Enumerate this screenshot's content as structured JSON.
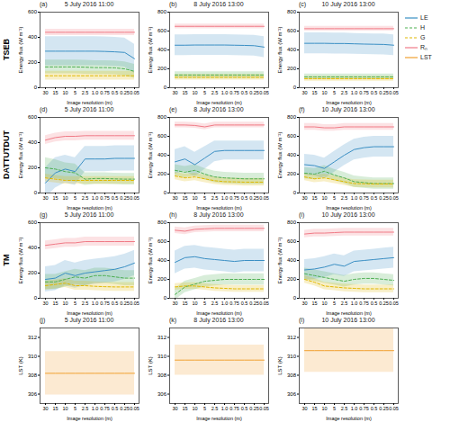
{
  "chart_data": [
    {
      "type": "line",
      "panel_label": "(a)",
      "title": "5 July 2016 11:00",
      "row_label": "TSEB",
      "xlabel": "Image resolution (m)",
      "ylabel": "Energy flux (W m⁻²)",
      "categories": [
        "30",
        "15",
        "10",
        "5",
        "2.5",
        "1.0",
        "0.75",
        "0.5",
        "0.25",
        "0.05"
      ],
      "ylim": [
        0,
        600
      ],
      "yticks": [
        0,
        200,
        400,
        600
      ],
      "series": [
        {
          "name": "LE",
          "color": "#3a8fc4",
          "line_style": "solid",
          "values": [
            290,
            290,
            290,
            290,
            290,
            290,
            288,
            285,
            280,
            230
          ],
          "error": 115
        },
        {
          "name": "H",
          "color": "#4caf50",
          "line_style": "dashed",
          "values": [
            165,
            165,
            165,
            165,
            163,
            160,
            160,
            158,
            150,
            130
          ],
          "error": 55
        },
        {
          "name": "G",
          "color": "#e0b800",
          "line_style": "dashed",
          "values": [
            95,
            95,
            95,
            95,
            95,
            95,
            95,
            95,
            95,
            95
          ],
          "error": 35
        },
        {
          "name": "Rₙ",
          "color": "#f07a86",
          "line_style": "solid",
          "values": [
            440,
            440,
            440,
            440,
            440,
            440,
            440,
            440,
            440,
            440
          ],
          "error": 25
        }
      ]
    },
    {
      "type": "line",
      "panel_label": "(b)",
      "title": "8 July 2016 13:00",
      "xlabel": "Image resolution (m)",
      "ylabel": "Energy flux (W m⁻²)",
      "categories": [
        "30",
        "15",
        "10",
        "5",
        "2.5",
        "1.0",
        "0.75",
        "0.5",
        "0.25",
        "0.05"
      ],
      "ylim": [
        0,
        800
      ],
      "yticks": [
        0,
        200,
        400,
        600,
        800
      ],
      "series": [
        {
          "name": "LE",
          "color": "#3a8fc4",
          "line_style": "solid",
          "values": [
            450,
            450,
            452,
            452,
            452,
            452,
            450,
            448,
            445,
            430
          ],
          "error": 110
        },
        {
          "name": "H",
          "color": "#4caf50",
          "line_style": "dashed",
          "values": [
            135,
            135,
            135,
            135,
            135,
            135,
            135,
            135,
            135,
            135
          ],
          "error": 35
        },
        {
          "name": "G",
          "color": "#e0b800",
          "line_style": "dashed",
          "values": [
            110,
            110,
            110,
            110,
            110,
            110,
            110,
            110,
            110,
            110
          ],
          "error": 30
        },
        {
          "name": "Rₙ",
          "color": "#f07a86",
          "line_style": "solid",
          "values": [
            650,
            650,
            650,
            650,
            650,
            650,
            650,
            650,
            650,
            650
          ],
          "error": 25
        }
      ]
    },
    {
      "type": "line",
      "panel_label": "(c)",
      "title": "10 July 2016 13:00",
      "xlabel": "Image resolution (m)",
      "ylabel": "Energy flux (W m⁻²)",
      "legend": "right",
      "categories": [
        "30",
        "15",
        "10",
        "5",
        "2.5",
        "1.0",
        "0.75",
        "0.5",
        "0.25",
        "0.05"
      ],
      "ylim": [
        0,
        800
      ],
      "yticks": [
        0,
        200,
        400,
        600,
        800
      ],
      "series": [
        {
          "name": "LE",
          "color": "#3a8fc4",
          "line_style": "solid",
          "values": [
            470,
            470,
            470,
            468,
            468,
            465,
            462,
            460,
            458,
            450
          ],
          "error": 110
        },
        {
          "name": "H",
          "color": "#4caf50",
          "line_style": "dashed",
          "values": [
            115,
            115,
            115,
            115,
            115,
            115,
            115,
            115,
            115,
            115
          ],
          "error": 30
        },
        {
          "name": "G",
          "color": "#e0b800",
          "line_style": "dashed",
          "values": [
            95,
            95,
            95,
            95,
            95,
            95,
            95,
            95,
            95,
            95
          ],
          "error": 25
        },
        {
          "name": "Rₙ",
          "color": "#f07a86",
          "line_style": "solid",
          "values": [
            625,
            625,
            625,
            625,
            625,
            625,
            625,
            625,
            625,
            625
          ],
          "error": 25
        }
      ]
    },
    {
      "type": "line",
      "panel_label": "(d)",
      "title": "5 July 2016 11:00",
      "row_label": "DATTUTDUT",
      "xlabel": "Image resolution (m)",
      "ylabel": "Energy flux (W m⁻²)",
      "categories": [
        "30",
        "15",
        "10",
        "5",
        "2.5",
        "1.0",
        "0.75",
        "0.5",
        "0.25",
        "0.05"
      ],
      "ylim": [
        0,
        600
      ],
      "yticks": [
        0,
        200,
        400,
        600
      ],
      "series": [
        {
          "name": "LE",
          "color": "#3a8fc4",
          "line_style": "solid",
          "values": [
            80,
            160,
            190,
            170,
            270,
            270,
            270,
            275,
            275,
            275
          ],
          "error": [
            120,
            120,
            110,
            110,
            100,
            100,
            100,
            100,
            100,
            100
          ]
        },
        {
          "name": "H",
          "color": "#4caf50",
          "line_style": "dashed",
          "values": [
            200,
            190,
            170,
            160,
            110,
            115,
            115,
            112,
            110,
            110
          ],
          "error": [
            80,
            75,
            70,
            70,
            50,
            45,
            45,
            45,
            45,
            45
          ]
        },
        {
          "name": "G",
          "color": "#e0b800",
          "line_style": "dashed",
          "values": [
            120,
            110,
            100,
            100,
            100,
            100,
            100,
            100,
            100,
            100
          ],
          "error": 30
        },
        {
          "name": "Rₙ",
          "color": "#f07a86",
          "line_style": "solid",
          "values": [
            420,
            440,
            450,
            450,
            455,
            455,
            455,
            455,
            455,
            455
          ],
          "error": 35
        }
      ]
    },
    {
      "type": "line",
      "panel_label": "(e)",
      "title": "8 July 2016 13:00",
      "xlabel": "Image resolution (m)",
      "ylabel": "Energy flux (W m⁻²)",
      "categories": [
        "30",
        "15",
        "10",
        "5",
        "2.5",
        "1.0",
        "0.75",
        "0.5",
        "0.25",
        "0.05"
      ],
      "ylim": [
        0,
        800
      ],
      "yticks": [
        0,
        200,
        400,
        600,
        800
      ],
      "series": [
        {
          "name": "LE",
          "color": "#3a8fc4",
          "line_style": "solid",
          "values": [
            330,
            360,
            300,
            370,
            440,
            450,
            450,
            450,
            450,
            450
          ],
          "error": [
            130,
            130,
            130,
            120,
            110,
            100,
            100,
            100,
            100,
            100
          ]
        },
        {
          "name": "H",
          "color": "#4caf50",
          "line_style": "dashed",
          "values": [
            240,
            220,
            240,
            200,
            170,
            160,
            155,
            150,
            150,
            150
          ],
          "error": 60
        },
        {
          "name": "G",
          "color": "#e0b800",
          "line_style": "dashed",
          "values": [
            180,
            160,
            170,
            150,
            130,
            120,
            118,
            115,
            115,
            115
          ],
          "error": 40
        },
        {
          "name": "Rₙ",
          "color": "#f07a86",
          "line_style": "solid",
          "values": [
            720,
            720,
            715,
            700,
            720,
            720,
            720,
            720,
            720,
            720
          ],
          "error": 30
        }
      ]
    },
    {
      "type": "line",
      "panel_label": "(f)",
      "title": "10 July 2016 13:00",
      "xlabel": "Image resolution (m)",
      "ylabel": "Energy flux (W m⁻²)",
      "categories": [
        "30",
        "15",
        "10",
        "5",
        "2.5",
        "1.0",
        "0.75",
        "0.5",
        "0.25",
        "0.05"
      ],
      "ylim": [
        0,
        800
      ],
      "yticks": [
        0,
        200,
        400,
        600,
        800
      ],
      "series": [
        {
          "name": "LE",
          "color": "#3a8fc4",
          "line_style": "solid",
          "values": [
            300,
            290,
            260,
            330,
            400,
            460,
            480,
            490,
            490,
            490
          ],
          "error": 110
        },
        {
          "name": "H",
          "color": "#4caf50",
          "line_style": "dashed",
          "values": [
            210,
            200,
            230,
            190,
            160,
            120,
            110,
            100,
            100,
            100
          ],
          "error": 60
        },
        {
          "name": "G",
          "color": "#e0b800",
          "line_style": "dashed",
          "values": [
            170,
            150,
            160,
            140,
            120,
            100,
            98,
            95,
            95,
            95
          ],
          "error": 40
        },
        {
          "name": "Rₙ",
          "color": "#f07a86",
          "line_style": "solid",
          "values": [
            700,
            700,
            690,
            690,
            700,
            700,
            700,
            700,
            700,
            700
          ],
          "error": 35
        }
      ]
    },
    {
      "type": "line",
      "panel_label": "(g)",
      "title": "5 July 2016 11:00",
      "row_label": "TM",
      "xlabel": "Image resolution (m)",
      "ylabel": "Energy flux (W m⁻²)",
      "categories": [
        "30",
        "15",
        "10",
        "5",
        "2.5",
        "1.0",
        "0.75",
        "0.5",
        "0.25",
        "0.05"
      ],
      "ylim": [
        0,
        600
      ],
      "yticks": [
        0,
        200,
        400,
        600
      ],
      "series": [
        {
          "name": "LE",
          "color": "#3a8fc4",
          "line_style": "solid",
          "values": [
            150,
            160,
            200,
            180,
            200,
            210,
            220,
            230,
            250,
            280
          ],
          "error": 100
        },
        {
          "name": "H",
          "color": "#4caf50",
          "line_style": "dashed",
          "values": [
            130,
            130,
            150,
            170,
            160,
            180,
            180,
            170,
            160,
            160
          ],
          "error": 60
        },
        {
          "name": "G",
          "color": "#e0b800",
          "line_style": "dashed",
          "values": [
            100,
            110,
            120,
            100,
            100,
            95,
            92,
            90,
            90,
            90
          ],
          "error": 35
        },
        {
          "name": "Rₙ",
          "color": "#f07a86",
          "line_style": "solid",
          "values": [
            420,
            430,
            440,
            440,
            450,
            450,
            450,
            450,
            450,
            450
          ],
          "error": 35
        }
      ]
    },
    {
      "type": "line",
      "panel_label": "(h)",
      "title": "8 July 2016 13:00",
      "xlabel": "Image resolution (m)",
      "ylabel": "Energy flux (W m⁻²)",
      "categories": [
        "30",
        "15",
        "10",
        "5",
        "2.5",
        "1.0",
        "0.75",
        "0.5",
        "0.25",
        "0.05"
      ],
      "ylim": [
        0,
        800
      ],
      "yticks": [
        0,
        200,
        400,
        600,
        800
      ],
      "series": [
        {
          "name": "LE",
          "color": "#3a8fc4",
          "line_style": "solid",
          "values": [
            380,
            430,
            440,
            420,
            410,
            400,
            390,
            400,
            400,
            400
          ],
          "error": 120
        },
        {
          "name": "H",
          "color": "#4caf50",
          "line_style": "dashed",
          "values": [
            40,
            120,
            150,
            180,
            190,
            200,
            200,
            200,
            200,
            200
          ],
          "error": 60
        },
        {
          "name": "G",
          "color": "#e0b800",
          "line_style": "dashed",
          "values": [
            120,
            130,
            130,
            120,
            110,
            105,
            100,
            100,
            100,
            100
          ],
          "error": 35
        },
        {
          "name": "Rₙ",
          "color": "#f07a86",
          "line_style": "solid",
          "values": [
            720,
            710,
            730,
            735,
            740,
            740,
            740,
            740,
            740,
            740
          ],
          "error": 35
        }
      ]
    },
    {
      "type": "line",
      "panel_label": "(i)",
      "title": "10 July 2016 13:00",
      "xlabel": "Image resolution (m)",
      "ylabel": "Energy flux (W m⁻²)",
      "categories": [
        "30",
        "15",
        "10",
        "5",
        "2.5",
        "1.0",
        "0.75",
        "0.5",
        "0.25",
        "0.05"
      ],
      "ylim": [
        0,
        800
      ],
      "yticks": [
        0,
        200,
        400,
        600,
        800
      ],
      "series": [
        {
          "name": "LE",
          "color": "#3a8fc4",
          "line_style": "solid",
          "values": [
            300,
            310,
            330,
            360,
            340,
            390,
            400,
            410,
            420,
            430
          ],
          "error": 110
        },
        {
          "name": "H",
          "color": "#4caf50",
          "line_style": "dashed",
          "values": [
            260,
            240,
            220,
            200,
            180,
            200,
            210,
            210,
            200,
            190
          ],
          "error": 60
        },
        {
          "name": "G",
          "color": "#e0b800",
          "line_style": "dashed",
          "values": [
            200,
            170,
            130,
            120,
            110,
            105,
            100,
            100,
            100,
            100
          ],
          "error": 40
        },
        {
          "name": "Rₙ",
          "color": "#f07a86",
          "line_style": "solid",
          "values": [
            680,
            690,
            690,
            695,
            700,
            700,
            700,
            700,
            700,
            700
          ],
          "error": 40
        }
      ]
    },
    {
      "type": "line",
      "panel_label": "(j)",
      "title": "5 July 2016 11:00",
      "xlabel": "Image resolution (m)",
      "ylabel": "LST (K)",
      "categories": [
        "30",
        "15",
        "10",
        "5",
        "2.5",
        "1.0",
        "0.75",
        "0.5",
        "0.25",
        "0.05"
      ],
      "ylim": [
        305,
        313
      ],
      "yticks": [
        306,
        308,
        310,
        312
      ],
      "series": [
        {
          "name": "LST",
          "color": "#f0a030",
          "line_style": "solid",
          "values": [
            308.2,
            308.2,
            308.2,
            308.2,
            308.2,
            308.2,
            308.2,
            308.2,
            308.2,
            308.2
          ],
          "error": 2.3
        }
      ]
    },
    {
      "type": "line",
      "panel_label": "(k)",
      "title": "8 July 2016 13:00",
      "xlabel": "Image resolution (m)",
      "ylabel": "LST (K)",
      "categories": [
        "30",
        "15",
        "10",
        "5",
        "2.5",
        "1.0",
        "0.75",
        "0.5",
        "0.25",
        "0.05"
      ],
      "ylim": [
        305,
        313
      ],
      "yticks": [
        306,
        308,
        310,
        312
      ],
      "series": [
        {
          "name": "LST",
          "color": "#f0a030",
          "line_style": "solid",
          "values": [
            309.6,
            309.6,
            309.6,
            309.6,
            309.6,
            309.6,
            309.6,
            309.6,
            309.6,
            309.6
          ],
          "error": 1.6
        }
      ]
    },
    {
      "type": "line",
      "panel_label": "(l)",
      "title": "10 July 2016 13:00",
      "xlabel": "Image resolution (m)",
      "ylabel": "LST (K)",
      "categories": [
        "30",
        "15",
        "10",
        "5",
        "2.5",
        "1.0",
        "0.75",
        "0.5",
        "0.25",
        "0.05"
      ],
      "ylim": [
        305,
        313
      ],
      "yticks": [
        306,
        308,
        310,
        312
      ],
      "series": [
        {
          "name": "LST",
          "color": "#f0a030",
          "line_style": "solid",
          "values": [
            310.6,
            310.6,
            310.6,
            310.6,
            310.6,
            310.6,
            310.6,
            310.6,
            310.6,
            310.6
          ],
          "error": 2.3
        }
      ]
    }
  ]
}
